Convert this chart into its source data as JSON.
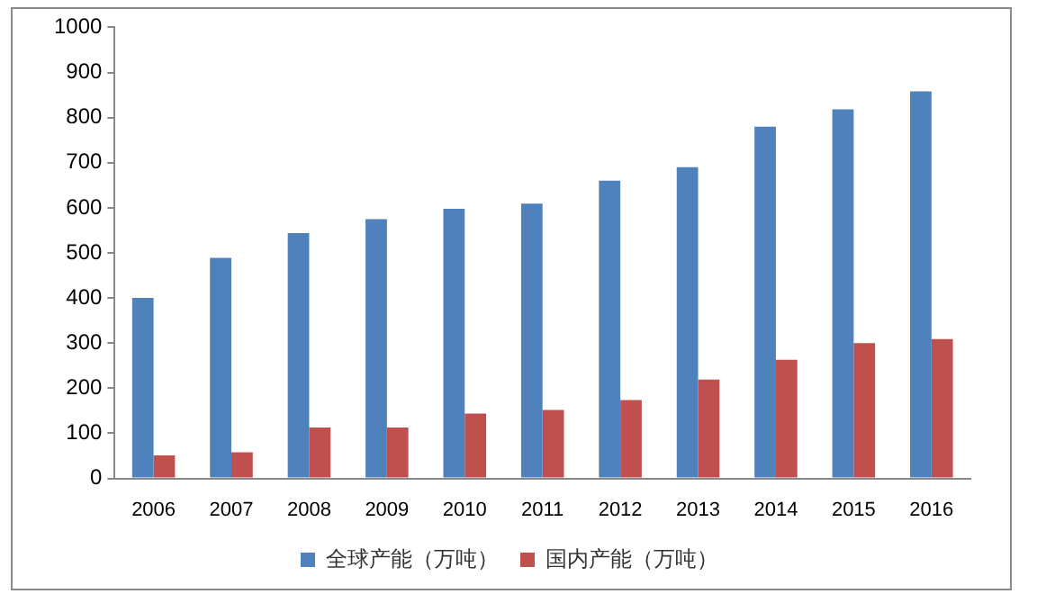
{
  "chart_data": {
    "type": "bar",
    "categories": [
      "2006",
      "2007",
      "2008",
      "2009",
      "2010",
      "2011",
      "2012",
      "2013",
      "2014",
      "2015",
      "2016"
    ],
    "series": [
      {
        "name": "全球产能（万吨）",
        "color": "#4f81bd",
        "values": [
          400,
          489,
          544,
          575,
          598,
          609,
          660,
          690,
          780,
          818,
          858
        ]
      },
      {
        "name": "国内产能（万吨）",
        "color": "#c0504d",
        "values": [
          51,
          58,
          113,
          113,
          144,
          152,
          174,
          219,
          263,
          300,
          309
        ]
      }
    ],
    "ylim": [
      0,
      1000
    ],
    "yticks": [
      0,
      100,
      200,
      300,
      400,
      500,
      600,
      700,
      800,
      900,
      1000
    ],
    "grid": false,
    "legend": "bottom"
  }
}
